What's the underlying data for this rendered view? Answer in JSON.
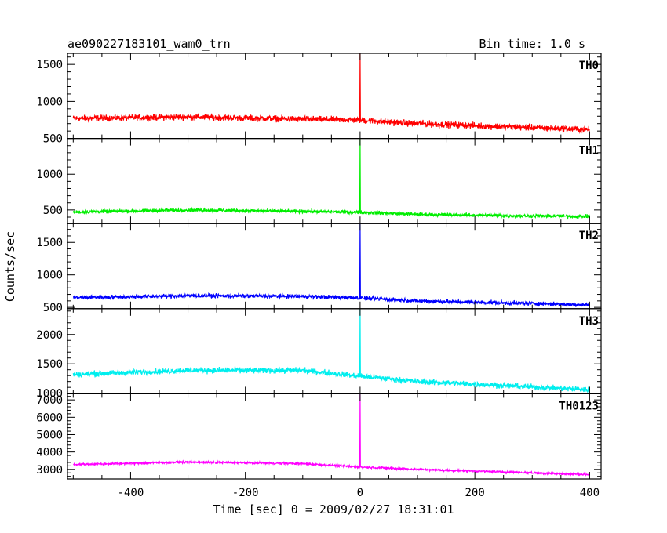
{
  "chart_data": {
    "type": "line",
    "title": "ae090227183101_wam0_trn",
    "bin_time_label": "Bin time: 1.0 s",
    "xlabel": "Time [sec] 0 = 2009/02/27 18:31:01",
    "ylabel": "Counts/sec",
    "xlim": [
      -510,
      420
    ],
    "x_ticks": [
      -400,
      -200,
      0,
      200,
      400
    ],
    "data_range": [
      -500,
      400
    ],
    "panels": [
      {
        "name": "TH0",
        "color": "#ff0000",
        "ylim": [
          500,
          1650
        ],
        "y_ticks": [
          500,
          1000,
          1500
        ],
        "trend": [
          [
            -500,
            770
          ],
          [
            -300,
            790
          ],
          [
            -100,
            760
          ],
          [
            -10,
            750
          ],
          [
            100,
            700
          ],
          [
            250,
            660
          ],
          [
            400,
            620
          ]
        ],
        "noise": 35,
        "spike": {
          "x": 0,
          "peak": 1650
        }
      },
      {
        "name": "TH1",
        "color": "#00ee00",
        "ylim": [
          310,
          1500
        ],
        "y_ticks": [
          500,
          1000
        ],
        "trend": [
          [
            -500,
            470
          ],
          [
            -300,
            500
          ],
          [
            -100,
            480
          ],
          [
            -10,
            470
          ],
          [
            100,
            440
          ],
          [
            250,
            420
          ],
          [
            400,
            410
          ]
        ],
        "noise": 20,
        "spike": {
          "x": 0,
          "peak": 1500
        }
      },
      {
        "name": "TH2",
        "color": "#0000ff",
        "ylim": [
          480,
          1790
        ],
        "y_ticks": [
          500,
          1000,
          1500
        ],
        "trend": [
          [
            -500,
            650
          ],
          [
            -300,
            680
          ],
          [
            -100,
            670
          ],
          [
            -10,
            650
          ],
          [
            100,
            600
          ],
          [
            250,
            570
          ],
          [
            400,
            540
          ]
        ],
        "noise": 25,
        "spike": {
          "x": 0,
          "peak": 1790
        }
      },
      {
        "name": "TH3",
        "color": "#00eeee",
        "ylim": [
          990,
          2440
        ],
        "y_ticks": [
          1000,
          1500,
          2000
        ],
        "trend": [
          [
            -500,
            1320
          ],
          [
            -300,
            1390
          ],
          [
            -100,
            1390
          ],
          [
            -10,
            1300
          ],
          [
            100,
            1200
          ],
          [
            250,
            1130
          ],
          [
            400,
            1060
          ]
        ],
        "noise": 40,
        "spike": {
          "x": 0,
          "peak": 2440
        }
      },
      {
        "name": "TH0123",
        "color": "#ff00ff",
        "ylim": [
          2450,
          7350
        ],
        "y_ticks": [
          3000,
          4000,
          5000,
          6000,
          7000
        ],
        "trend": [
          [
            -500,
            3280
          ],
          [
            -300,
            3420
          ],
          [
            -100,
            3330
          ],
          [
            -10,
            3150
          ],
          [
            100,
            3000
          ],
          [
            250,
            2850
          ],
          [
            400,
            2700
          ]
        ],
        "noise": 50,
        "spike": {
          "x": 0,
          "peak": 7350
        }
      }
    ]
  }
}
